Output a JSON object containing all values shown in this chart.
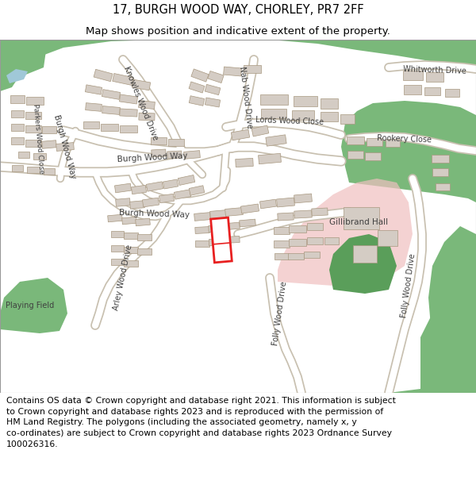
{
  "title": "17, BURGH WOOD WAY, CHORLEY, PR7 2FF",
  "subtitle": "Map shows position and indicative extent of the property.",
  "footer_lines": [
    "Contains OS data © Crown copyright and database right 2021. This information is subject",
    "to Crown copyright and database rights 2023 and is reproduced with the permission of",
    "HM Land Registry. The polygons (including the associated geometry, namely x, y",
    "co-ordinates) are subject to Crown copyright and database rights 2023 Ordnance Survey",
    "100026316."
  ],
  "title_fontsize": 10.5,
  "subtitle_fontsize": 9.5,
  "footer_fontsize": 7.8,
  "map_bg": "#f2efe9",
  "green1": "#7ab87a",
  "green2": "#5a9e5a",
  "road_white": "#ffffff",
  "road_edge": "#c8c0b0",
  "building": "#d4ccc4",
  "building_edge": "#a89880",
  "highlight_red": "#e82020",
  "pink_area": "#f0c0c0",
  "water_blue": "#a0c8d8",
  "label_color": "#404040",
  "header_bg": "#ffffff",
  "footer_bg": "#ffffff"
}
